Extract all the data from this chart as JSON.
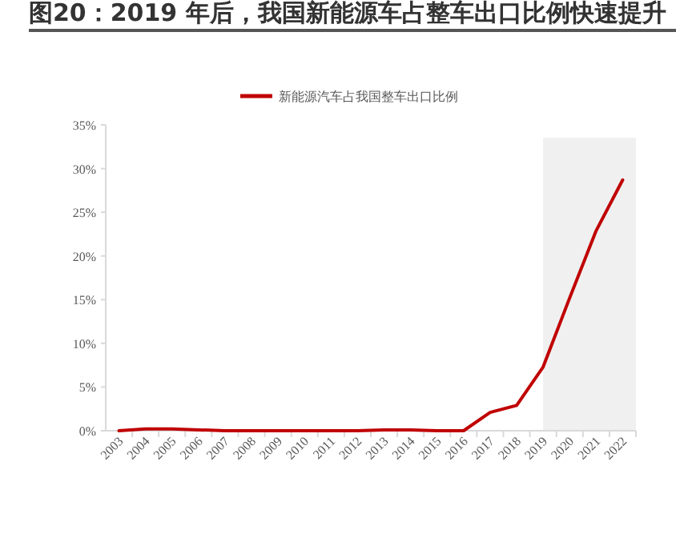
{
  "chart_data": {
    "type": "line",
    "title": "图20：2019 年后，我国新能源车占整车出口比例快速提升",
    "categories": [
      "2003",
      "2004",
      "2005",
      "2006",
      "2007",
      "2008",
      "2009",
      "2010",
      "2011",
      "2012",
      "2013",
      "2014",
      "2015",
      "2016",
      "2017",
      "2018",
      "2019",
      "2020",
      "2021",
      "2022"
    ],
    "series": [
      {
        "name": "新能源汽车占我国整车出口比例",
        "color": "#c00000",
        "values": [
          0,
          0.2,
          0.2,
          0.1,
          0,
          0,
          0,
          0,
          0,
          0,
          0.1,
          0.1,
          0,
          0,
          2.1,
          2.9,
          7.3,
          15.2,
          22.9,
          28.7
        ]
      }
    ],
    "ylim": [
      0,
      35
    ],
    "yticks": [
      {
        "value": 0,
        "label": "0%"
      },
      {
        "value": 5,
        "label": "5%"
      },
      {
        "value": 10,
        "label": "10%"
      },
      {
        "value": 15,
        "label": "15%"
      },
      {
        "value": 20,
        "label": "20%"
      },
      {
        "value": 25,
        "label": "25%"
      },
      {
        "value": 30,
        "label": "30%"
      },
      {
        "value": 35,
        "label": "35%"
      }
    ],
    "bands": [
      {
        "axis": "x",
        "from": "2019",
        "to": "2022",
        "color": "#f0f0f0"
      }
    ],
    "grid": false,
    "legend": "top",
    "marker": "none",
    "line_style": "solid"
  }
}
